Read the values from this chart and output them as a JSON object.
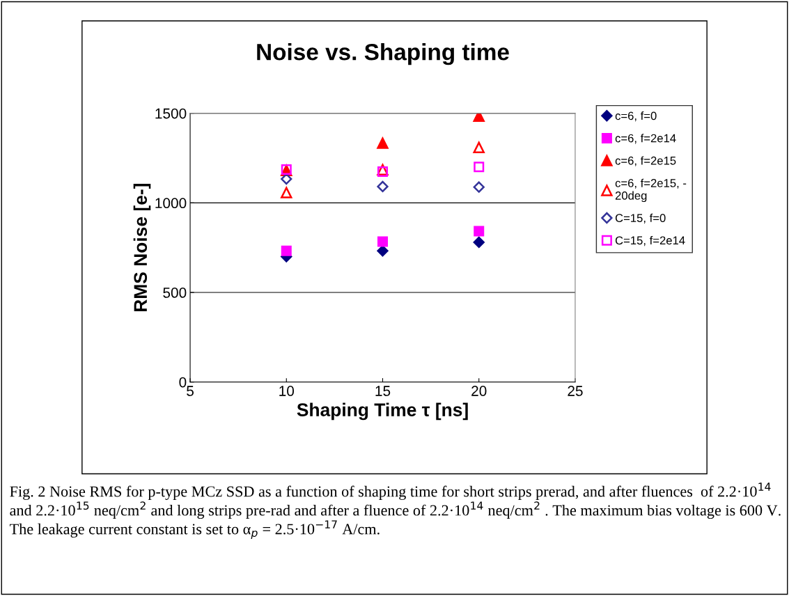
{
  "chart_data": {
    "type": "scatter",
    "title": "Noise vs. Shaping time",
    "xlabel": "Shaping Time τ [ns]",
    "ylabel": "RMS Noise [e-]",
    "x": [
      10,
      15,
      20
    ],
    "series": [
      {
        "name": "c=6, f=0",
        "color": "#000080",
        "marker": "diamond",
        "values": [
          700,
          732,
          780
        ]
      },
      {
        "name": "c=6, f=2e14",
        "color": "#ff00ff",
        "marker": "square",
        "values": [
          732,
          784,
          842
        ]
      },
      {
        "name": "c=6, f=2e15",
        "color": "#ff0000",
        "marker": "triangle",
        "values": [
          1181,
          1333,
          1484
        ]
      },
      {
        "name": "c=6, f=2e15, -\n20deg",
        "color": "#ff0000",
        "marker": "triangle",
        "values": [
          1057,
          1185,
          1309
        ]
      },
      {
        "name": "C=15, f=0",
        "color": "#333399",
        "marker": "diamond",
        "values": [
          1133,
          1091,
          1088
        ]
      },
      {
        "name": "C=15, f=2e14",
        "color": "#ff00ff",
        "marker": "square",
        "values": [
          1186,
          1174,
          1200
        ]
      }
    ],
    "xlim": [
      5,
      25
    ],
    "xticks": [
      5,
      10,
      15,
      20,
      25
    ],
    "ylim": [
      0,
      1500
    ],
    "yticks": [
      0,
      500,
      1000,
      1500
    ],
    "grid": "y",
    "legend": "right",
    "annotations": [
      "Fig. 2 Noise RMS for p-type MCz SSD as a function of shaping time for short strips prerad, and after fluences  of 2.2·10$^{14}$ and 2.2·10$^{15}$ neq/cm$^{2}$ and long strips pre-rad and after a fluence of 2.2·10$^{14}$ neq/cm$^{2}$ . The maximum bias voltage is 600 V. The leakage current constant is set to α$_{p}$ = 2.5·10$^{−17}$ A/cm."
    ]
  }
}
